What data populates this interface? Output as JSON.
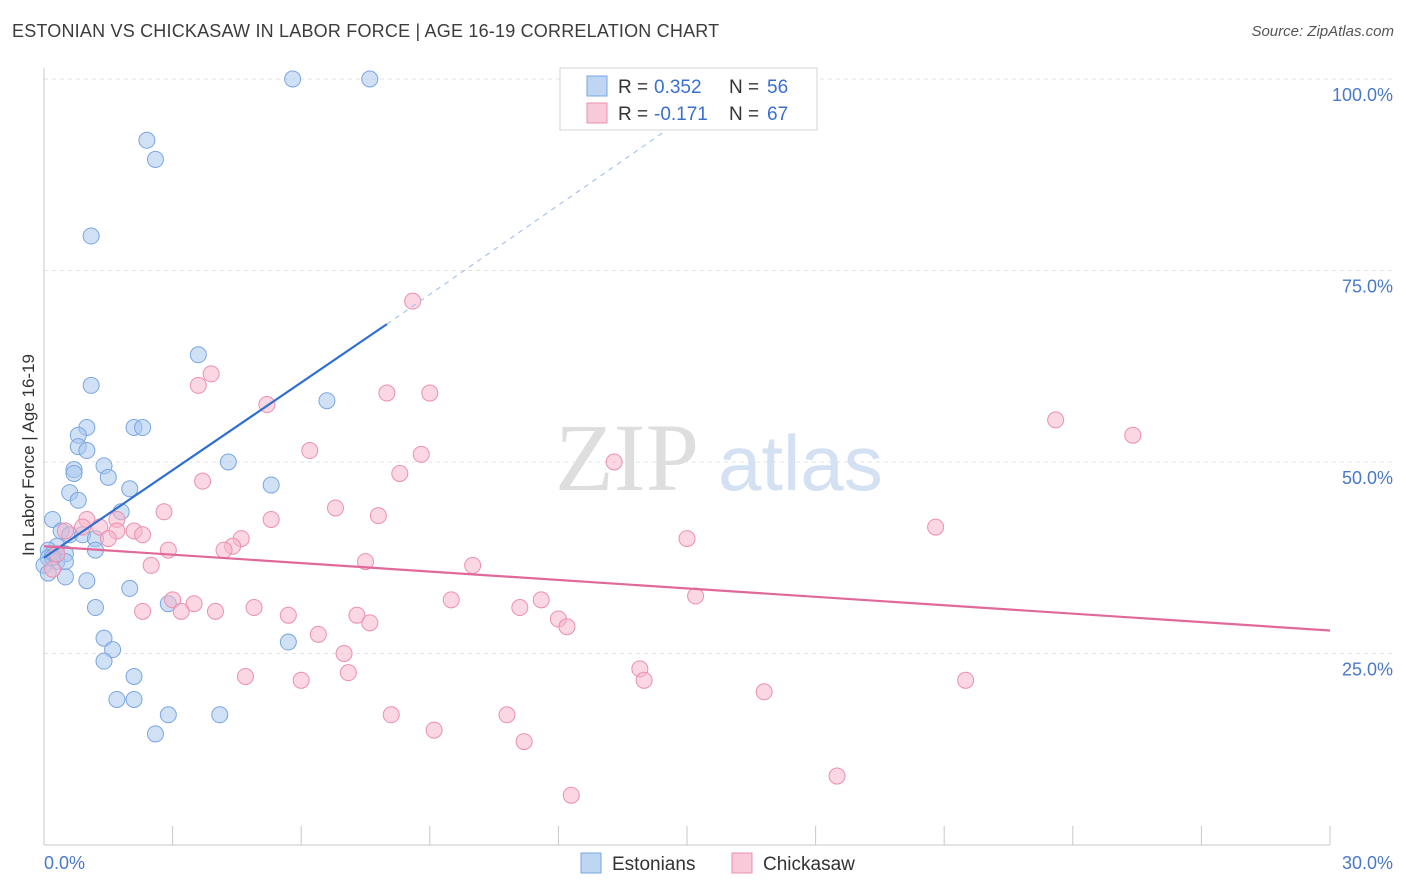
{
  "title": "ESTONIAN VS CHICKASAW IN LABOR FORCE | AGE 16-19 CORRELATION CHART",
  "source": "Source: ZipAtlas.com",
  "watermark": {
    "zip": "ZIP",
    "atlas": "atlas"
  },
  "legend": {
    "rows": [
      {
        "r_label": "R =",
        "r_value": "0.352",
        "n_label": "N =",
        "n_value": "56",
        "color": "#a9c8ef"
      },
      {
        "r_label": "R =",
        "r_value": "-0.171",
        "n_label": "N =",
        "n_value": "67",
        "color": "#f6b7cb"
      }
    ]
  },
  "bottom_legend": [
    {
      "label": "Estonians",
      "color": "#a9c8ef"
    },
    {
      "label": "Chickasaw",
      "color": "#f6b7cb"
    }
  ],
  "chart_data": {
    "type": "scatter",
    "xlabel": "",
    "ylabel": "In Labor Force | Age 16-19",
    "xlim": [
      0,
      30
    ],
    "ylim": [
      0,
      102
    ],
    "x_tick_labels": [
      {
        "value": 0,
        "label": "0.0%"
      },
      {
        "value": 30,
        "label": "30.0%"
      }
    ],
    "y_tick_labels": [
      {
        "value": 25,
        "label": "25.0%"
      },
      {
        "value": 50,
        "label": "50.0%"
      },
      {
        "value": 75,
        "label": "75.0%"
      },
      {
        "value": 100,
        "label": "100.0%"
      }
    ],
    "grid": true,
    "legend_position": "top-center",
    "series": [
      {
        "name": "Estonians",
        "color": "#a9c8ef",
        "stroke": "#7aa6e0",
        "trend": {
          "x": [
            0.0,
            8.0
          ],
          "y": [
            37.5,
            68.0
          ],
          "color": "#2f6fd1",
          "dashed_to": {
            "x": 16.5,
            "y": 101.0
          }
        },
        "points": [
          [
            5.8,
            100.0
          ],
          [
            7.6,
            100.0
          ],
          [
            2.4,
            92.0
          ],
          [
            2.6,
            89.5
          ],
          [
            1.1,
            79.5
          ],
          [
            3.6,
            64.0
          ],
          [
            1.1,
            60.0
          ],
          [
            6.6,
            58.0
          ],
          [
            1.0,
            54.5
          ],
          [
            2.1,
            54.5
          ],
          [
            2.3,
            54.5
          ],
          [
            0.8,
            53.5
          ],
          [
            0.8,
            52.0
          ],
          [
            1.0,
            51.5
          ],
          [
            4.3,
            50.0
          ],
          [
            1.4,
            49.5
          ],
          [
            0.7,
            49.0
          ],
          [
            0.7,
            48.5
          ],
          [
            1.5,
            48.0
          ],
          [
            5.3,
            47.0
          ],
          [
            2.0,
            46.5
          ],
          [
            0.6,
            46.0
          ],
          [
            0.8,
            45.0
          ],
          [
            1.8,
            43.5
          ],
          [
            0.2,
            42.5
          ],
          [
            0.4,
            41.0
          ],
          [
            0.6,
            40.5
          ],
          [
            0.9,
            40.5
          ],
          [
            1.2,
            40.0
          ],
          [
            0.3,
            39.0
          ],
          [
            0.1,
            38.5
          ],
          [
            0.2,
            38.0
          ],
          [
            0.3,
            38.0
          ],
          [
            0.5,
            38.0
          ],
          [
            0.1,
            37.5
          ],
          [
            1.2,
            38.5
          ],
          [
            0.3,
            37.0
          ],
          [
            0.5,
            37.0
          ],
          [
            0.2,
            37.5
          ],
          [
            0.0,
            36.5
          ],
          [
            0.5,
            35.0
          ],
          [
            1.0,
            34.5
          ],
          [
            2.0,
            33.5
          ],
          [
            1.2,
            31.0
          ],
          [
            2.9,
            31.5
          ],
          [
            1.4,
            27.0
          ],
          [
            1.6,
            25.5
          ],
          [
            5.7,
            26.5
          ],
          [
            1.4,
            24.0
          ],
          [
            2.1,
            22.0
          ],
          [
            1.7,
            19.0
          ],
          [
            2.1,
            19.0
          ],
          [
            2.9,
            17.0
          ],
          [
            4.1,
            17.0
          ],
          [
            2.6,
            14.5
          ],
          [
            0.1,
            35.5
          ]
        ]
      },
      {
        "name": "Chickasaw",
        "color": "#f6b7cb",
        "stroke": "#ec8fb0",
        "trend": {
          "x": [
            0.0,
            30.0
          ],
          "y": [
            39.0,
            28.0
          ],
          "color": "#e0699a"
        },
        "points": [
          [
            8.6,
            71.0
          ],
          [
            3.9,
            61.5
          ],
          [
            3.6,
            60.0
          ],
          [
            8.0,
            59.0
          ],
          [
            9.0,
            59.0
          ],
          [
            5.2,
            57.5
          ],
          [
            23.6,
            55.5
          ],
          [
            25.4,
            53.5
          ],
          [
            6.2,
            51.5
          ],
          [
            8.8,
            51.0
          ],
          [
            13.3,
            50.0
          ],
          [
            8.3,
            48.5
          ],
          [
            3.7,
            47.5
          ],
          [
            6.8,
            44.0
          ],
          [
            2.8,
            43.5
          ],
          [
            1.0,
            42.5
          ],
          [
            7.8,
            43.0
          ],
          [
            5.3,
            42.5
          ],
          [
            1.7,
            42.5
          ],
          [
            1.3,
            41.5
          ],
          [
            0.5,
            41.0
          ],
          [
            0.9,
            41.5
          ],
          [
            1.7,
            41.0
          ],
          [
            2.1,
            41.0
          ],
          [
            1.5,
            40.0
          ],
          [
            2.3,
            40.5
          ],
          [
            4.6,
            40.0
          ],
          [
            4.4,
            39.0
          ],
          [
            20.8,
            41.5
          ],
          [
            15.0,
            40.0
          ],
          [
            4.2,
            38.5
          ],
          [
            2.9,
            38.5
          ],
          [
            7.5,
            37.0
          ],
          [
            10.0,
            36.5
          ],
          [
            2.5,
            36.5
          ],
          [
            0.2,
            36.0
          ],
          [
            3.0,
            32.0
          ],
          [
            3.5,
            31.5
          ],
          [
            9.5,
            32.0
          ],
          [
            11.6,
            32.0
          ],
          [
            15.2,
            32.5
          ],
          [
            4.9,
            31.0
          ],
          [
            11.1,
            31.0
          ],
          [
            2.3,
            30.5
          ],
          [
            3.2,
            30.5
          ],
          [
            4.0,
            30.5
          ],
          [
            5.7,
            30.0
          ],
          [
            7.3,
            30.0
          ],
          [
            7.6,
            29.0
          ],
          [
            12.0,
            29.5
          ],
          [
            12.2,
            28.5
          ],
          [
            6.4,
            27.5
          ],
          [
            7.0,
            25.0
          ],
          [
            13.9,
            23.0
          ],
          [
            14.0,
            21.5
          ],
          [
            4.7,
            22.0
          ],
          [
            6.0,
            21.5
          ],
          [
            7.1,
            22.5
          ],
          [
            21.5,
            21.5
          ],
          [
            16.8,
            20.0
          ],
          [
            8.1,
            17.0
          ],
          [
            10.8,
            17.0
          ],
          [
            9.1,
            15.0
          ],
          [
            11.2,
            13.5
          ],
          [
            18.5,
            9.0
          ],
          [
            12.3,
            6.5
          ],
          [
            0.3,
            38.0
          ]
        ]
      }
    ]
  }
}
